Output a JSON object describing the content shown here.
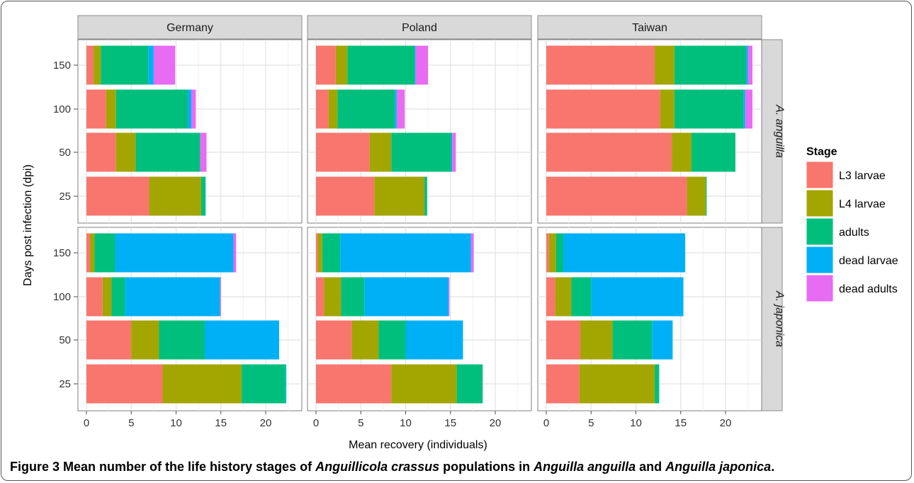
{
  "chart_data": {
    "type": "bar",
    "orientation": "horizontal",
    "stacked": true,
    "xlabel": "Mean recovery (individuals)",
    "ylabel": "Days post infection (dpi)",
    "xlim": [
      0,
      24
    ],
    "xticks": [
      0,
      5,
      10,
      15,
      20
    ],
    "categories": [
      "25",
      "50",
      "100",
      "150"
    ],
    "columns": [
      "Germany",
      "Poland",
      "Taiwan"
    ],
    "rows": [
      "A. anguilla",
      "A. japonica"
    ],
    "legend": {
      "title": "Stage",
      "position": "right",
      "entries": [
        {
          "name": "L3 larvae",
          "color": "#F8766D"
        },
        {
          "name": "L4 larvae",
          "color": "#A3A500"
        },
        {
          "name": "adults",
          "color": "#00BF7D"
        },
        {
          "name": "dead larvae",
          "color": "#00B0F6"
        },
        {
          "name": "dead adults",
          "color": "#E76BF3"
        }
      ]
    },
    "grid": true,
    "panels": [
      {
        "row": "A. anguilla",
        "column": "Germany",
        "bars": {
          "150": [
            0.8,
            0.8,
            5.3,
            0.6,
            2.4
          ],
          "100": [
            2.2,
            1.1,
            8.0,
            0.4,
            0.5
          ],
          "50": [
            3.3,
            2.2,
            7.2,
            0.0,
            0.7
          ],
          "25": [
            7.0,
            5.8,
            0.5,
            0.0,
            0.0
          ]
        }
      },
      {
        "row": "A. anguilla",
        "column": "Poland",
        "bars": {
          "150": [
            2.2,
            1.3,
            7.5,
            0.1,
            1.4
          ],
          "100": [
            1.4,
            1.0,
            6.4,
            0.2,
            0.9
          ],
          "50": [
            6.0,
            2.4,
            6.7,
            0.1,
            0.4
          ],
          "25": [
            6.5,
            5.6,
            0.3,
            0.0,
            0.0
          ]
        }
      },
      {
        "row": "A. anguilla",
        "column": "Taiwan",
        "bars": {
          "150": [
            12.1,
            2.2,
            8.0,
            0.2,
            0.5
          ],
          "100": [
            12.7,
            1.6,
            7.7,
            0.2,
            0.8
          ],
          "50": [
            14.0,
            2.2,
            4.9,
            0.0,
            0.0
          ],
          "25": [
            15.7,
            2.1,
            0.1,
            0.0,
            0.0
          ]
        }
      },
      {
        "row": "A. japonica",
        "column": "Germany",
        "bars": {
          "150": [
            0.4,
            0.5,
            2.3,
            13.2,
            0.3
          ],
          "100": [
            1.8,
            1.0,
            1.5,
            10.6,
            0.1
          ],
          "50": [
            5.0,
            3.1,
            5.1,
            8.3,
            0.0
          ],
          "25": [
            8.5,
            8.8,
            4.9,
            0.1,
            0.0
          ]
        }
      },
      {
        "row": "A. japonica",
        "column": "Poland",
        "bars": {
          "150": [
            0.2,
            0.5,
            2.0,
            14.6,
            0.3
          ],
          "100": [
            0.9,
            1.9,
            2.6,
            9.4,
            0.1
          ],
          "50": [
            4.0,
            3.0,
            3.0,
            6.4,
            0.0
          ],
          "25": [
            8.4,
            7.3,
            2.9,
            0.0,
            0.0
          ]
        }
      },
      {
        "row": "A. japonica",
        "column": "Taiwan",
        "bars": {
          "150": [
            0.3,
            0.8,
            0.8,
            13.6,
            0.0
          ],
          "100": [
            1.0,
            1.8,
            2.2,
            10.3,
            0.0
          ],
          "50": [
            3.8,
            3.6,
            4.4,
            2.3,
            0.0
          ],
          "25": [
            3.7,
            8.4,
            0.5,
            0.0,
            0.0
          ]
        }
      }
    ]
  },
  "caption": {
    "label": "Figure 3",
    "text1": " Mean number of the life history stages of ",
    "species1": "Anguillicola crassus",
    "text2": " populations in ",
    "species2": "Anguilla anguilla",
    "text3": " and ",
    "species3": "Anguilla japonica",
    "text4": "."
  }
}
